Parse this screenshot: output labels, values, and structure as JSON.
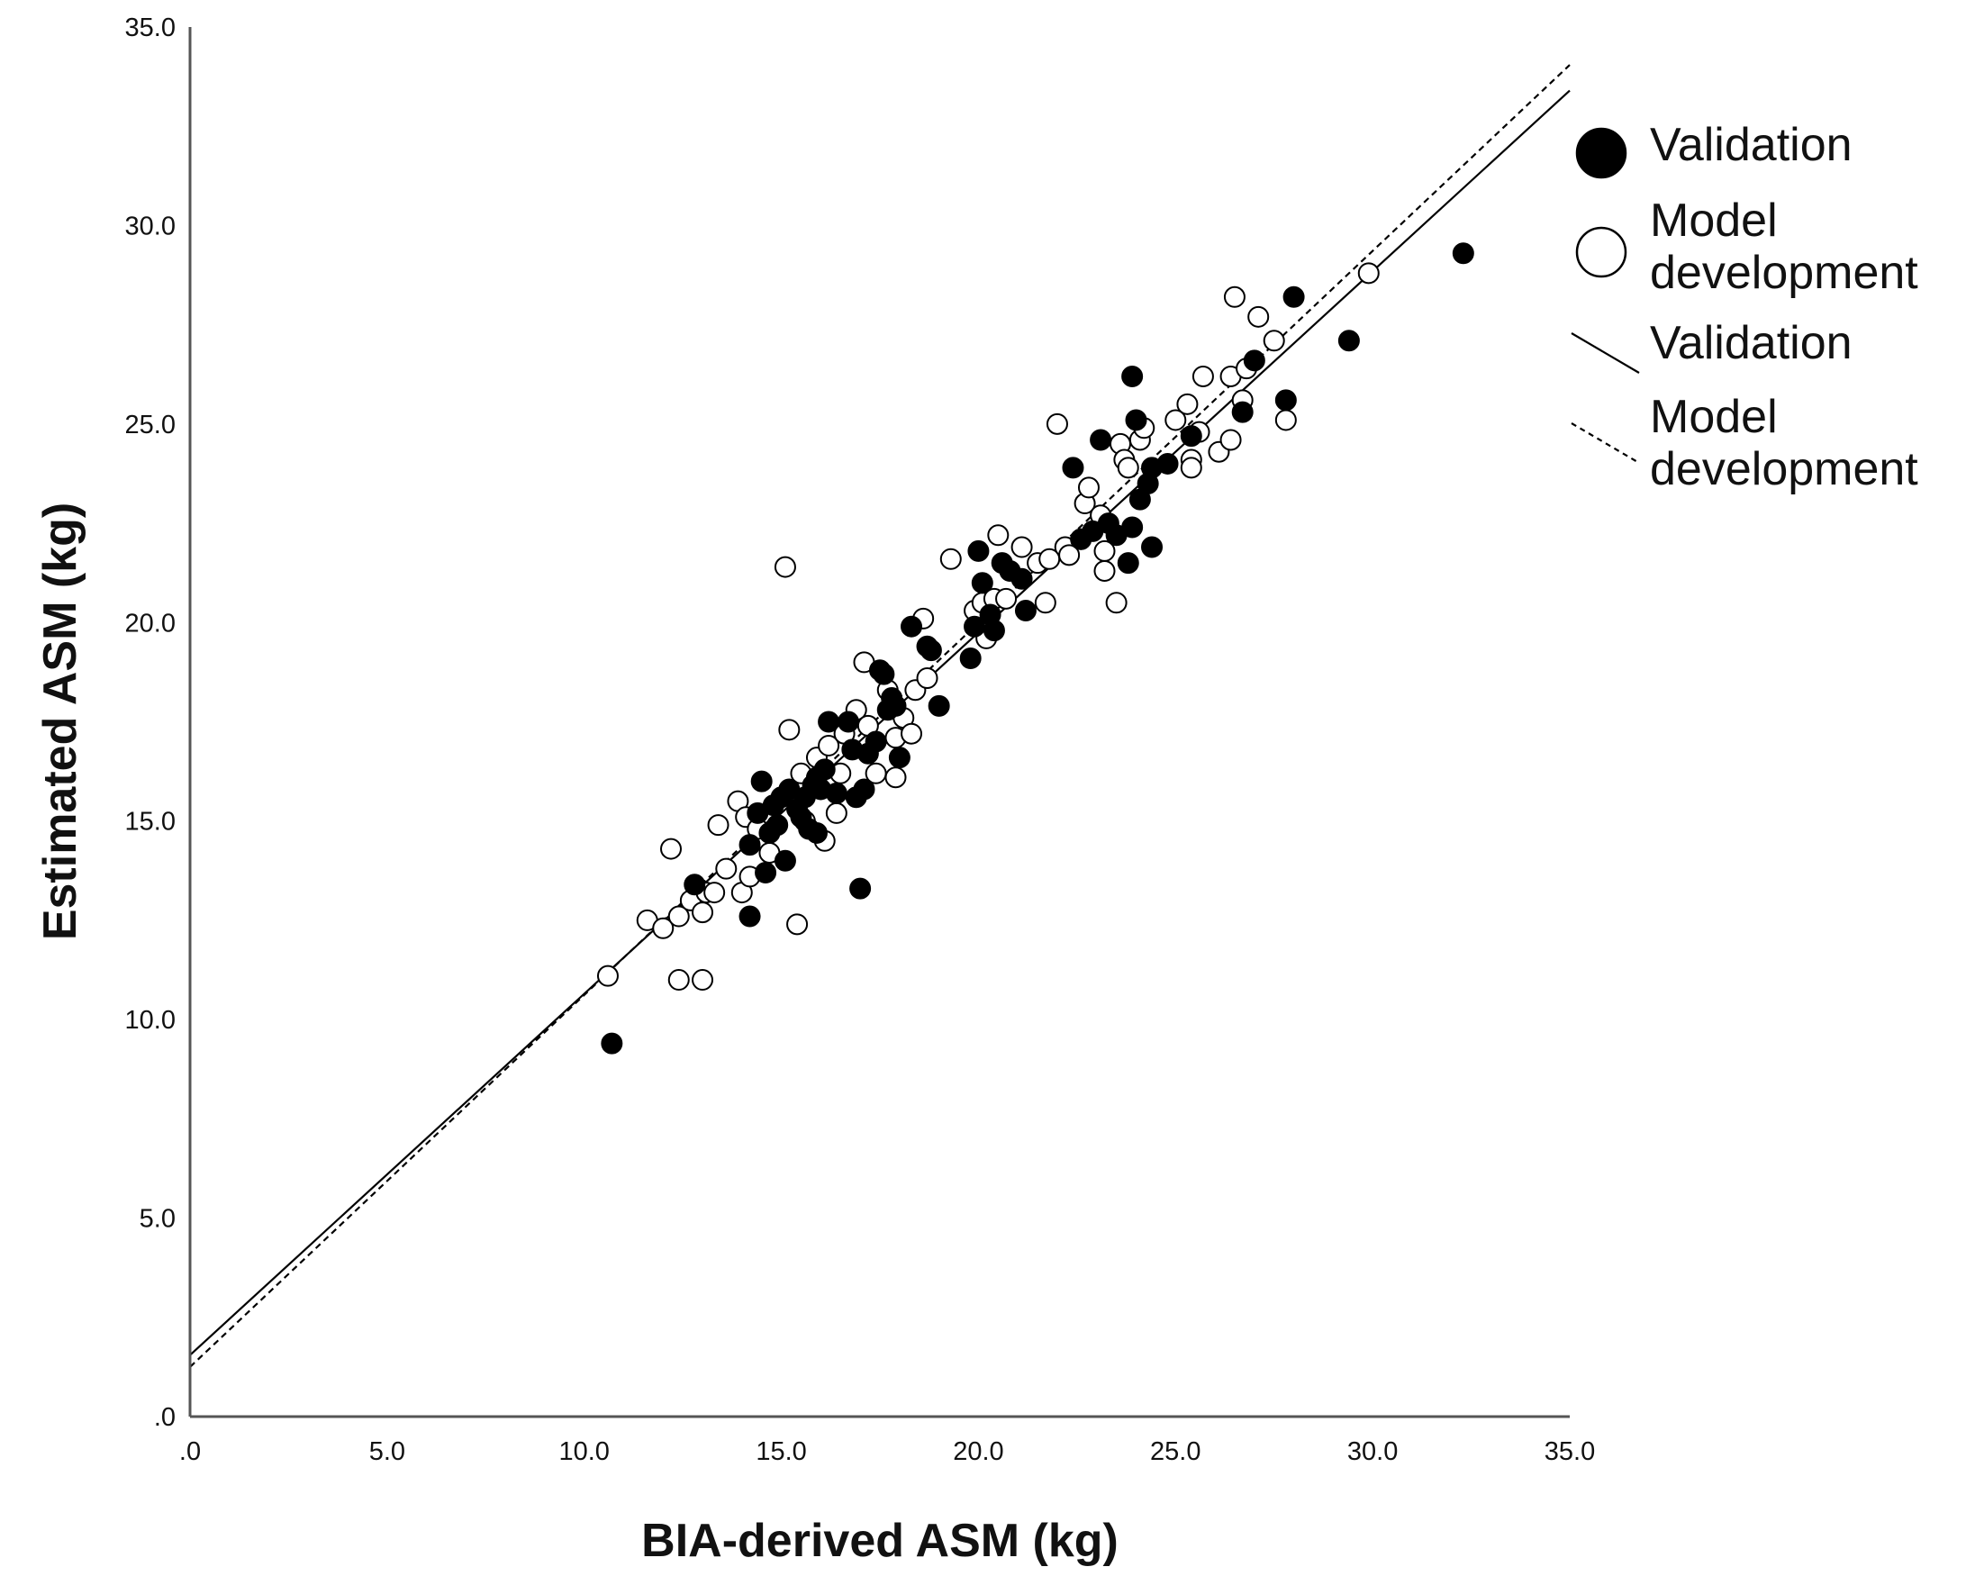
{
  "chart_data": {
    "type": "scatter",
    "title": "",
    "xlabel": "BIA-derived ASM (kg)",
    "ylabel": "Estimated ASM (kg)",
    "xlim": [
      0,
      35
    ],
    "ylim": [
      0,
      35
    ],
    "xticks": [
      0,
      5,
      10,
      15,
      20,
      25,
      30,
      35
    ],
    "yticks": [
      0,
      5,
      10,
      15,
      20,
      25,
      30,
      35
    ],
    "xtick_labels": [
      ".0",
      "5.0",
      "10.0",
      "15.0",
      "20.0",
      "25.0",
      "30.0",
      "35.0"
    ],
    "ytick_labels": [
      ".0",
      "5.0",
      "10.0",
      "15.0",
      "20.0",
      "25.0",
      "30.0",
      "35.0"
    ],
    "grid": false,
    "legend_position": "top-right, outside plot",
    "colors": {
      "validation_marker": "#000000",
      "development_marker": "#ffffff",
      "marker_edge": "#000000",
      "axis": "#555555"
    },
    "series": [
      {
        "name": "Validation",
        "kind": "points",
        "marker": "filled-circle",
        "points": [
          [
            10.7,
            9.4
          ],
          [
            12.8,
            13.4
          ],
          [
            14.2,
            12.6
          ],
          [
            14.2,
            14.4
          ],
          [
            14.4,
            15.2
          ],
          [
            14.5,
            16.0
          ],
          [
            14.6,
            13.7
          ],
          [
            14.7,
            14.7
          ],
          [
            14.8,
            15.4
          ],
          [
            14.9,
            14.9
          ],
          [
            15.0,
            15.6
          ],
          [
            15.1,
            14.0
          ],
          [
            15.2,
            15.8
          ],
          [
            15.4,
            15.3
          ],
          [
            15.5,
            15.1
          ],
          [
            15.6,
            15.6
          ],
          [
            15.7,
            14.8
          ],
          [
            15.8,
            15.9
          ],
          [
            15.9,
            16.1
          ],
          [
            15.9,
            14.7
          ],
          [
            16.0,
            15.8
          ],
          [
            16.1,
            16.3
          ],
          [
            16.2,
            17.5
          ],
          [
            16.4,
            15.7
          ],
          [
            16.7,
            17.5
          ],
          [
            16.8,
            16.8
          ],
          [
            16.9,
            15.6
          ],
          [
            17.0,
            13.3
          ],
          [
            17.1,
            15.8
          ],
          [
            17.2,
            16.7
          ],
          [
            17.4,
            17.0
          ],
          [
            17.5,
            18.8
          ],
          [
            17.6,
            18.7
          ],
          [
            17.7,
            17.8
          ],
          [
            17.8,
            18.1
          ],
          [
            17.9,
            17.9
          ],
          [
            18.0,
            16.6
          ],
          [
            18.3,
            19.9
          ],
          [
            18.7,
            19.4
          ],
          [
            18.8,
            19.3
          ],
          [
            19.0,
            17.9
          ],
          [
            19.8,
            19.1
          ],
          [
            19.9,
            19.9
          ],
          [
            20.0,
            21.8
          ],
          [
            20.1,
            21.0
          ],
          [
            20.3,
            20.2
          ],
          [
            20.4,
            19.8
          ],
          [
            20.6,
            21.5
          ],
          [
            20.8,
            21.3
          ],
          [
            21.1,
            21.1
          ],
          [
            21.2,
            20.3
          ],
          [
            22.4,
            23.9
          ],
          [
            22.6,
            22.1
          ],
          [
            22.9,
            22.3
          ],
          [
            23.1,
            24.6
          ],
          [
            23.3,
            22.5
          ],
          [
            23.5,
            22.2
          ],
          [
            23.8,
            21.5
          ],
          [
            23.9,
            26.2
          ],
          [
            23.9,
            22.4
          ],
          [
            24.0,
            25.1
          ],
          [
            24.1,
            23.1
          ],
          [
            24.3,
            23.5
          ],
          [
            24.4,
            23.9
          ],
          [
            24.4,
            21.9
          ],
          [
            24.8,
            24.0
          ],
          [
            25.4,
            24.7
          ],
          [
            26.7,
            25.3
          ],
          [
            27.0,
            26.6
          ],
          [
            27.8,
            25.6
          ],
          [
            28.0,
            28.2
          ],
          [
            29.4,
            27.1
          ],
          [
            32.3,
            29.3
          ]
        ]
      },
      {
        "name": "Model development",
        "kind": "points",
        "marker": "open-circle",
        "points": [
          [
            10.6,
            11.1
          ],
          [
            11.6,
            12.5
          ],
          [
            12.0,
            12.3
          ],
          [
            12.2,
            14.3
          ],
          [
            12.4,
            11.0
          ],
          [
            12.4,
            12.6
          ],
          [
            12.7,
            13.0
          ],
          [
            13.0,
            12.7
          ],
          [
            13.0,
            11.0
          ],
          [
            13.1,
            13.2
          ],
          [
            13.3,
            13.2
          ],
          [
            13.4,
            14.9
          ],
          [
            13.6,
            13.8
          ],
          [
            13.9,
            15.5
          ],
          [
            14.0,
            13.2
          ],
          [
            14.1,
            15.1
          ],
          [
            14.2,
            13.6
          ],
          [
            14.4,
            14.8
          ],
          [
            14.7,
            14.2
          ],
          [
            15.1,
            21.4
          ],
          [
            15.2,
            17.3
          ],
          [
            15.4,
            12.4
          ],
          [
            15.5,
            16.2
          ],
          [
            15.6,
            15.0
          ],
          [
            15.9,
            16.6
          ],
          [
            16.1,
            14.5
          ],
          [
            16.2,
            16.9
          ],
          [
            16.4,
            15.2
          ],
          [
            16.5,
            16.2
          ],
          [
            16.6,
            17.2
          ],
          [
            16.9,
            17.8
          ],
          [
            17.1,
            19.0
          ],
          [
            17.2,
            17.4
          ],
          [
            17.4,
            16.2
          ],
          [
            17.7,
            18.3
          ],
          [
            17.9,
            17.1
          ],
          [
            17.9,
            16.1
          ],
          [
            18.1,
            17.6
          ],
          [
            18.3,
            17.2
          ],
          [
            18.4,
            18.3
          ],
          [
            18.6,
            20.1
          ],
          [
            18.7,
            18.6
          ],
          [
            19.3,
            21.6
          ],
          [
            19.9,
            20.3
          ],
          [
            20.1,
            20.5
          ],
          [
            20.2,
            19.6
          ],
          [
            20.4,
            20.6
          ],
          [
            20.5,
            22.2
          ],
          [
            20.7,
            20.6
          ],
          [
            21.1,
            21.9
          ],
          [
            21.5,
            21.5
          ],
          [
            21.7,
            20.5
          ],
          [
            21.8,
            21.6
          ],
          [
            22.0,
            25.0
          ],
          [
            22.2,
            21.9
          ],
          [
            22.3,
            21.7
          ],
          [
            22.6,
            22.1
          ],
          [
            22.7,
            23.0
          ],
          [
            22.8,
            23.4
          ],
          [
            23.1,
            22.7
          ],
          [
            23.2,
            21.3
          ],
          [
            23.2,
            21.8
          ],
          [
            23.5,
            20.5
          ],
          [
            23.6,
            24.5
          ],
          [
            23.7,
            24.1
          ],
          [
            23.8,
            23.9
          ],
          [
            24.1,
            24.6
          ],
          [
            24.2,
            24.9
          ],
          [
            25.0,
            25.1
          ],
          [
            25.3,
            25.5
          ],
          [
            25.4,
            24.1
          ],
          [
            25.4,
            23.9
          ],
          [
            25.6,
            24.8
          ],
          [
            25.7,
            26.2
          ],
          [
            26.1,
            24.3
          ],
          [
            26.4,
            24.6
          ],
          [
            26.4,
            26.2
          ],
          [
            26.5,
            28.2
          ],
          [
            26.7,
            25.6
          ],
          [
            26.8,
            26.4
          ],
          [
            27.1,
            27.7
          ],
          [
            27.5,
            27.1
          ],
          [
            27.8,
            25.1
          ],
          [
            29.9,
            28.8
          ]
        ]
      },
      {
        "name": "Validation",
        "kind": "regression-line",
        "line_style": "solid",
        "intercept": 1.55,
        "slope": 0.91
      },
      {
        "name": "Model development",
        "kind": "regression-line",
        "line_style": "dashed",
        "intercept": 1.25,
        "slope": 0.937
      }
    ],
    "legend": [
      {
        "label": "Validation",
        "symbol": "filled-circle"
      },
      {
        "label": "Model development",
        "symbol": "open-circle",
        "lines": [
          "Model",
          "development"
        ]
      },
      {
        "label": "Validation",
        "symbol": "solid-line"
      },
      {
        "label": "Model development",
        "symbol": "dashed-line",
        "lines": [
          "Model",
          "development"
        ]
      }
    ]
  }
}
